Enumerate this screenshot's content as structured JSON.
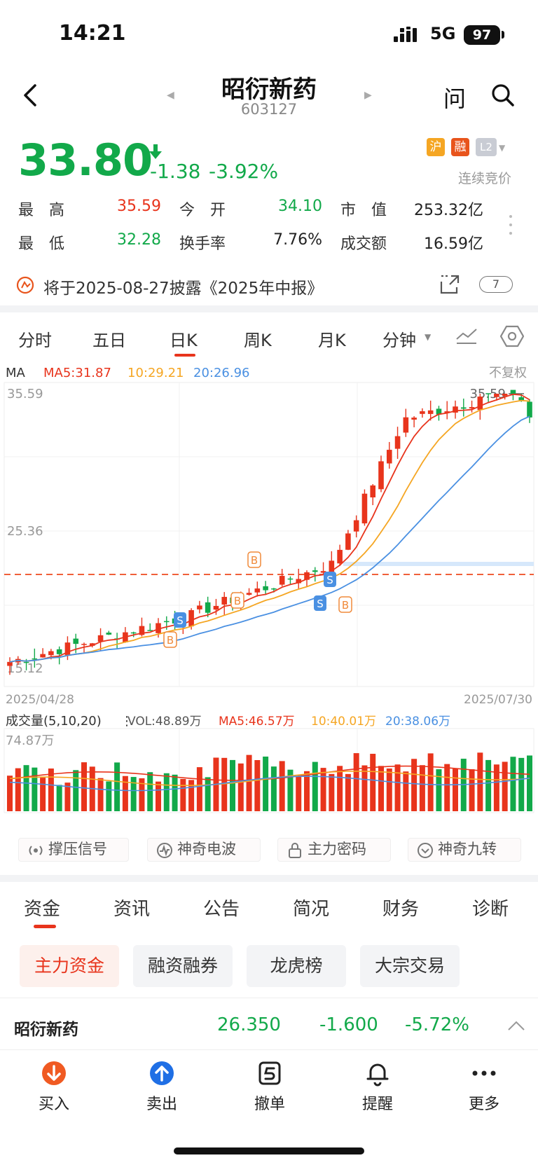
{
  "status_bar": {
    "time": "14:21",
    "network": "5G",
    "battery": "97"
  },
  "header": {
    "name": "昭衍新药",
    "code": "603127"
  },
  "quote": {
    "price": "33.80",
    "change": "-1.38",
    "change_pct": "-3.92%",
    "badges": [
      "沪",
      "融",
      "L2"
    ],
    "status": "连续竞价",
    "stats": [
      {
        "label": "最　高",
        "value": "35.59",
        "tone": "up"
      },
      {
        "label": "今　开",
        "value": "34.10",
        "tone": "down"
      },
      {
        "label": "市　值",
        "value": "253.32亿",
        "tone": "plain"
      },
      {
        "label": "最　低",
        "value": "32.28",
        "tone": "down"
      },
      {
        "label": "换手率",
        "value": "7.76%",
        "tone": "plain"
      },
      {
        "label": "成交额",
        "value": "16.59亿",
        "tone": "plain"
      }
    ]
  },
  "notice": {
    "text": "将于2025-08-27披露《2025年中报》",
    "count": "7"
  },
  "period_tabs": [
    "分时",
    "五日",
    "日K",
    "周K",
    "月K",
    "分钟"
  ],
  "period_active": "日K",
  "chart": {
    "ma_label": "MA",
    "ma5": "MA5:31.87",
    "ma10": "10:29.21",
    "ma20": "20:26.96",
    "adjust": "不复权",
    "y_top": "35.59",
    "y_mid": "25.36",
    "y_low": "15.12",
    "high_marker": "35.59",
    "date_start": "2025/04/28",
    "date_end": "2025/07/30",
    "vol_title": "成交量(5,10,20)",
    "vol_value": "VOL:48.89万",
    "vol_ma5": "MA5:46.57万",
    "vol_ma10": "10:40.01万",
    "vol_ma20": "20:38.06万",
    "vol_max": "74.87万",
    "colors": {
      "ma5": "#e8341c",
      "ma10": "#f5a623",
      "ma20": "#4a90e2",
      "up": "#e8341c",
      "down": "#12a94a"
    }
  },
  "tool_buttons": [
    "撑压信号",
    "神奇电波",
    "主力密码",
    "神奇九转"
  ],
  "section_tabs": [
    "资金",
    "资讯",
    "公告",
    "简况",
    "财务",
    "诊断"
  ],
  "section_active": "资金",
  "chips": [
    "主力资金",
    "融资融券",
    "龙虎榜",
    "大宗交易"
  ],
  "fund_row": {
    "name": "昭衍新药",
    "value": "26.350",
    "change": "-1.600",
    "pct": "-5.72%"
  },
  "bottom_bar": [
    "买入",
    "卖出",
    "撤单",
    "提醒",
    "更多"
  ]
}
